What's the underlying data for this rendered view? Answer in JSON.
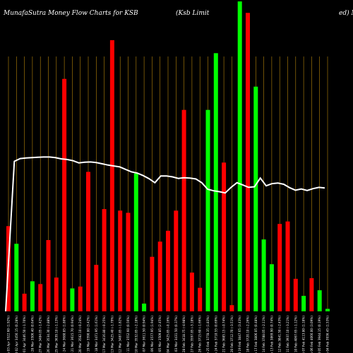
{
  "chart_data": {
    "type": "bar",
    "title": "MunafaSutra  Money Flow  Charts for KSB",
    "subtitle": "(Ksb Limit",
    "subtitle_tail": "ed) M",
    "ylim": [
      0,
      100
    ],
    "colors": {
      "up": "#00ff00",
      "down": "#ff0000",
      "grid": "#b8860b",
      "line": "#ffffff",
      "background": "#000000"
    },
    "bars": [
      {
        "label": "Thu 03 Apr 3522.60 (1.92%)",
        "value": 27.5,
        "dir": "down"
      },
      {
        "label": "Wed 02 Apr 3456.15 (0.28%)",
        "value": 21.8,
        "dir": "up"
      },
      {
        "label": "Tue 01 Apr 3446.50 (-1.70%)",
        "value": 5.7,
        "dir": "down"
      },
      {
        "label": "Fri 28 Mar 3506.40 (0.64%)",
        "value": 9.7,
        "dir": "up"
      },
      {
        "label": "Thu 27 Mar 3484.05 (-1.42%)",
        "value": 8.8,
        "dir": "down"
      },
      {
        "label": "Wed 26 Mar 3534.30 (-2.88%)",
        "value": 23.0,
        "dir": "down"
      },
      {
        "label": "Tue 25 Mar 3639.10 (-1.13%)",
        "value": 10.9,
        "dir": "down"
      },
      {
        "label": "Mon 24 Mar 3680.85 (1.80%)",
        "value": 75.0,
        "dir": "down"
      },
      {
        "label": "Fri 21 Mar 3615.70 (0.94%)",
        "value": 7.4,
        "dir": "up"
      },
      {
        "label": "Thu 20 Mar 3582.10 (-0.24%)",
        "value": 8.0,
        "dir": "down"
      },
      {
        "label": "Wed 19 Mar 3590.80 (3.42%)",
        "value": 45.0,
        "dir": "down"
      },
      {
        "label": "Tue 18 Mar 3471.95 (1.61%)",
        "value": 15.0,
        "dir": "down"
      },
      {
        "label": "Mon 17 Mar 3416.80 (-0.25%)",
        "value": 33.0,
        "dir": "down"
      },
      {
        "label": "Thu 13 Mar 3425.40 (-1.79%)",
        "value": 87.5,
        "dir": "down"
      },
      {
        "label": "Wed 12 Mar 3487.85 (-1.82%)",
        "value": 32.5,
        "dir": "down"
      },
      {
        "label": "Tue 11 Mar 3552.60 (0.56%)",
        "value": 31.8,
        "dir": "down"
      },
      {
        "label": "Mon 10 Mar 3532.85 (-2.18%)",
        "value": 44.5,
        "dir": "up"
      },
      {
        "label": "Fri 07 Mar 3611.50 (0.94%)",
        "value": 2.5,
        "dir": "up"
      },
      {
        "label": "Thu 06 Mar 3577.95 (1.94%)",
        "value": 17.6,
        "dir": "down"
      },
      {
        "label": "Wed 05 Mar 3509.85 (2.45%)",
        "value": 22.5,
        "dir": "down"
      },
      {
        "label": "Tue 04 Mar 3425.85 (-0.16%)",
        "value": 26.0,
        "dir": "down"
      },
      {
        "label": "Mon 03 Mar 3431.50 (0.37%)",
        "value": 32.5,
        "dir": "down"
      },
      {
        "label": "Fri 28 Feb 3418.75 (-4.98%)",
        "value": 65.0,
        "dir": "down"
      },
      {
        "label": "Thu 27 Feb 3597.85 (-3.18%)",
        "value": 12.5,
        "dir": "down"
      },
      {
        "label": "Wed 26 Feb 3715.60 (-1.66%)",
        "value": 7.6,
        "dir": "down"
      },
      {
        "label": "Tue 25 Feb 3778.35 (1.83%)",
        "value": 65.0,
        "dir": "up"
      },
      {
        "label": "Mon 24 Feb 3710.55 (0.69%)",
        "value": 83.3,
        "dir": "up"
      },
      {
        "label": "Fri 21 Feb 3685.15 (-0.74%)",
        "value": 48.0,
        "dir": "down"
      },
      {
        "label": "Thu 20 Feb 3712.70 (-3.51%)",
        "value": 2.0,
        "dir": "down"
      },
      {
        "label": "Wed 19 Feb 3847.65 (3.43%)",
        "value": 100.0,
        "dir": "up"
      },
      {
        "label": "Tue 18 Feb 3720.10 (-2.26%)",
        "value": 96.3,
        "dir": "down"
      },
      {
        "label": "Mon 17 Feb 3806.05 (0.48%)",
        "value": 72.5,
        "dir": "up"
      },
      {
        "label": "Fri 14 Feb 3788.05 (-2.11%)",
        "value": 23.2,
        "dir": "up"
      },
      {
        "label": "Thu 13 Feb 3869.90 (0.74%)",
        "value": 15.2,
        "dir": "up"
      },
      {
        "label": "Wed 12 Feb 3841.50 (-2.43%)",
        "value": 28.2,
        "dir": "down"
      },
      {
        "label": "Tue 11 Feb 3937.10 (-3.21%)",
        "value": 29.0,
        "dir": "down"
      },
      {
        "label": "Mon 10 Feb 4067.65 (-1.12%)",
        "value": 10.5,
        "dir": "down"
      },
      {
        "label": "Fri 07 Feb 4113.80 (1.18%)",
        "value": 5.0,
        "dir": "up"
      },
      {
        "label": "Thu 06 Feb 4066.00 (3.09%)",
        "value": 10.7,
        "dir": "down"
      },
      {
        "label": "Wed 05 Feb 3944.15 (0.19%)",
        "value": 6.8,
        "dir": "up"
      },
      {
        "label": "Tue 04 Feb 3936.45 (1.53%)",
        "value": 0.8,
        "dir": "up"
      }
    ],
    "line_series": [
      0,
      48.4,
      49.3,
      49.5,
      49.6,
      49.7,
      49.8,
      49.8,
      49.6,
      49.2,
      49.0,
      48.6,
      47.9,
      48.1,
      48.2,
      48.0,
      47.6,
      47.2,
      46.9,
      46.6,
      45.8,
      45.0,
      44.6,
      43.8,
      42.8,
      41.5,
      43.7,
      43.7,
      43.4,
      42.9,
      43.1,
      43.0,
      42.7,
      41.5,
      39.4,
      38.9,
      38.6,
      38.2,
      40.0,
      41.5,
      40.8,
      40.0,
      40.2,
      43.0,
      40.5,
      41.2,
      41.4,
      41.0,
      39.9,
      39.1,
      39.5,
      39.0,
      39.6,
      40.0,
      39.8
    ]
  }
}
